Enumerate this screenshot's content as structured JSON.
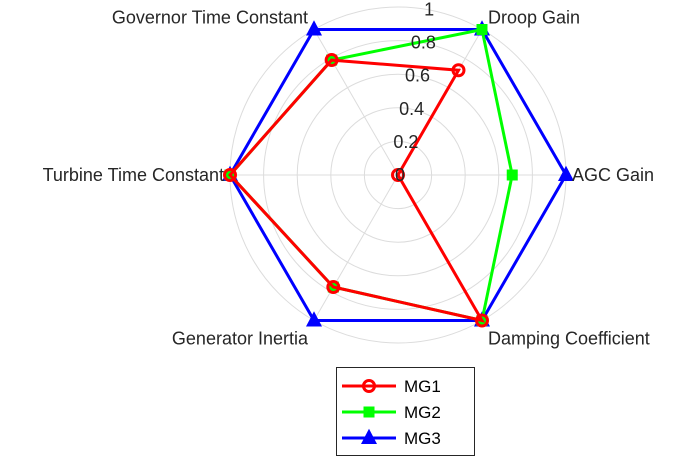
{
  "chart_data": {
    "type": "radar",
    "title": "",
    "axes": [
      "Droop Gain",
      "AGC Gain",
      "Damping Coefficient",
      "Generator Inertia",
      "Turbine Time Constant",
      "Governor Time Constant"
    ],
    "r_ticks": [
      "0",
      "0.2",
      "0.4",
      "0.6",
      "0.8",
      "1"
    ],
    "r_tick_values": [
      0,
      0.2,
      0.4,
      0.6,
      0.8,
      1.0
    ],
    "rlim": [
      0,
      1
    ],
    "grid": true,
    "legend_position": "bottom",
    "series": [
      {
        "name": "MG1",
        "color": "#ff0000",
        "marker": "circle",
        "values": [
          0.72,
          0.0,
          1.0,
          0.77,
          1.0,
          0.79
        ]
      },
      {
        "name": "MG2",
        "color": "#00ff00",
        "marker": "square",
        "values": [
          1.0,
          0.68,
          1.0,
          0.77,
          1.0,
          0.79
        ]
      },
      {
        "name": "MG3",
        "color": "#0000ff",
        "marker": "triangle",
        "values": [
          1.0,
          1.0,
          1.0,
          1.0,
          1.0,
          1.0
        ]
      }
    ]
  }
}
